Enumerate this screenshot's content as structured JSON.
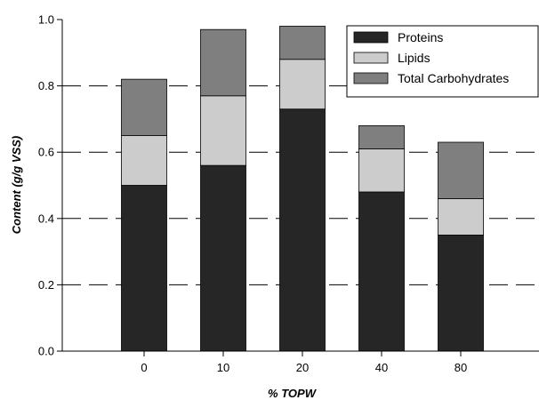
{
  "chart_data": {
    "type": "bar",
    "stacked": true,
    "categories": [
      "0",
      "10",
      "20",
      "40",
      "80"
    ],
    "series": [
      {
        "name": "Proteins",
        "values": [
          0.5,
          0.56,
          0.73,
          0.48,
          0.35
        ],
        "color": "#262626"
      },
      {
        "name": "Lipids",
        "values": [
          0.15,
          0.21,
          0.15,
          0.13,
          0.11
        ],
        "color": "#cccccc"
      },
      {
        "name": "Total Carbohydrates",
        "values": [
          0.17,
          0.2,
          0.1,
          0.07,
          0.17
        ],
        "color": "#7f7f7f"
      }
    ],
    "xlabel": "% TOPW",
    "ylabel": "Content (g/g VSS)",
    "ylim": [
      0.0,
      1.0
    ],
    "yticks": [
      "0.0",
      "0.2",
      "0.4",
      "0.6",
      "0.8",
      "1.0"
    ],
    "grid": "dashed horizontal",
    "legend_position": "top-right"
  }
}
